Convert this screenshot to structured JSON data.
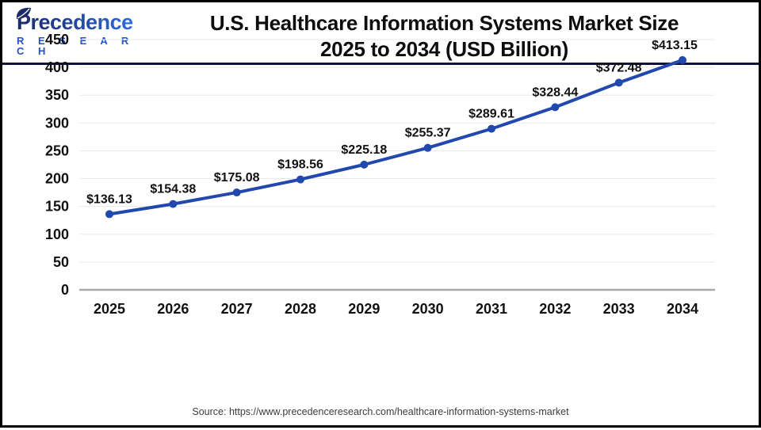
{
  "header": {
    "logo": {
      "brand": "Precedence",
      "sub": "R E S E A R C H"
    },
    "title_line1": "U.S. Healthcare Information Systems Market Size",
    "title_line2": "2025 to 2034 (USD Billion)"
  },
  "footer": {
    "source": "Source: https://www.precedenceresearch.com/healthcare-information-systems-market"
  },
  "colors": {
    "line": "#2148ae",
    "marker": "#2148ae",
    "grid": "#eaeaea",
    "zero_axis": "#a9a9a9",
    "divider": "#10143c",
    "text": "#111111"
  },
  "chart_data": {
    "type": "line",
    "title": "U.S. Healthcare Information Systems Market Size 2025 to 2034 (USD Billion)",
    "categories": [
      "2025",
      "2026",
      "2027",
      "2028",
      "2029",
      "2030",
      "2031",
      "2032",
      "2033",
      "2034"
    ],
    "values": [
      136.13,
      154.38,
      175.08,
      198.56,
      225.18,
      255.37,
      289.61,
      328.44,
      372.48,
      413.15
    ],
    "point_labels": [
      "$136.13",
      "$154.38",
      "$175.08",
      "$198.56",
      "$225.18",
      "$255.37",
      "$289.61",
      "$328.44",
      "$372.48",
      "$413.15"
    ],
    "xlabel": "",
    "ylabel": "",
    "ylim": [
      0,
      450
    ],
    "yticks": [
      0,
      50,
      100,
      150,
      200,
      250,
      300,
      350,
      400,
      450
    ],
    "grid": true,
    "legend_position": "none"
  }
}
